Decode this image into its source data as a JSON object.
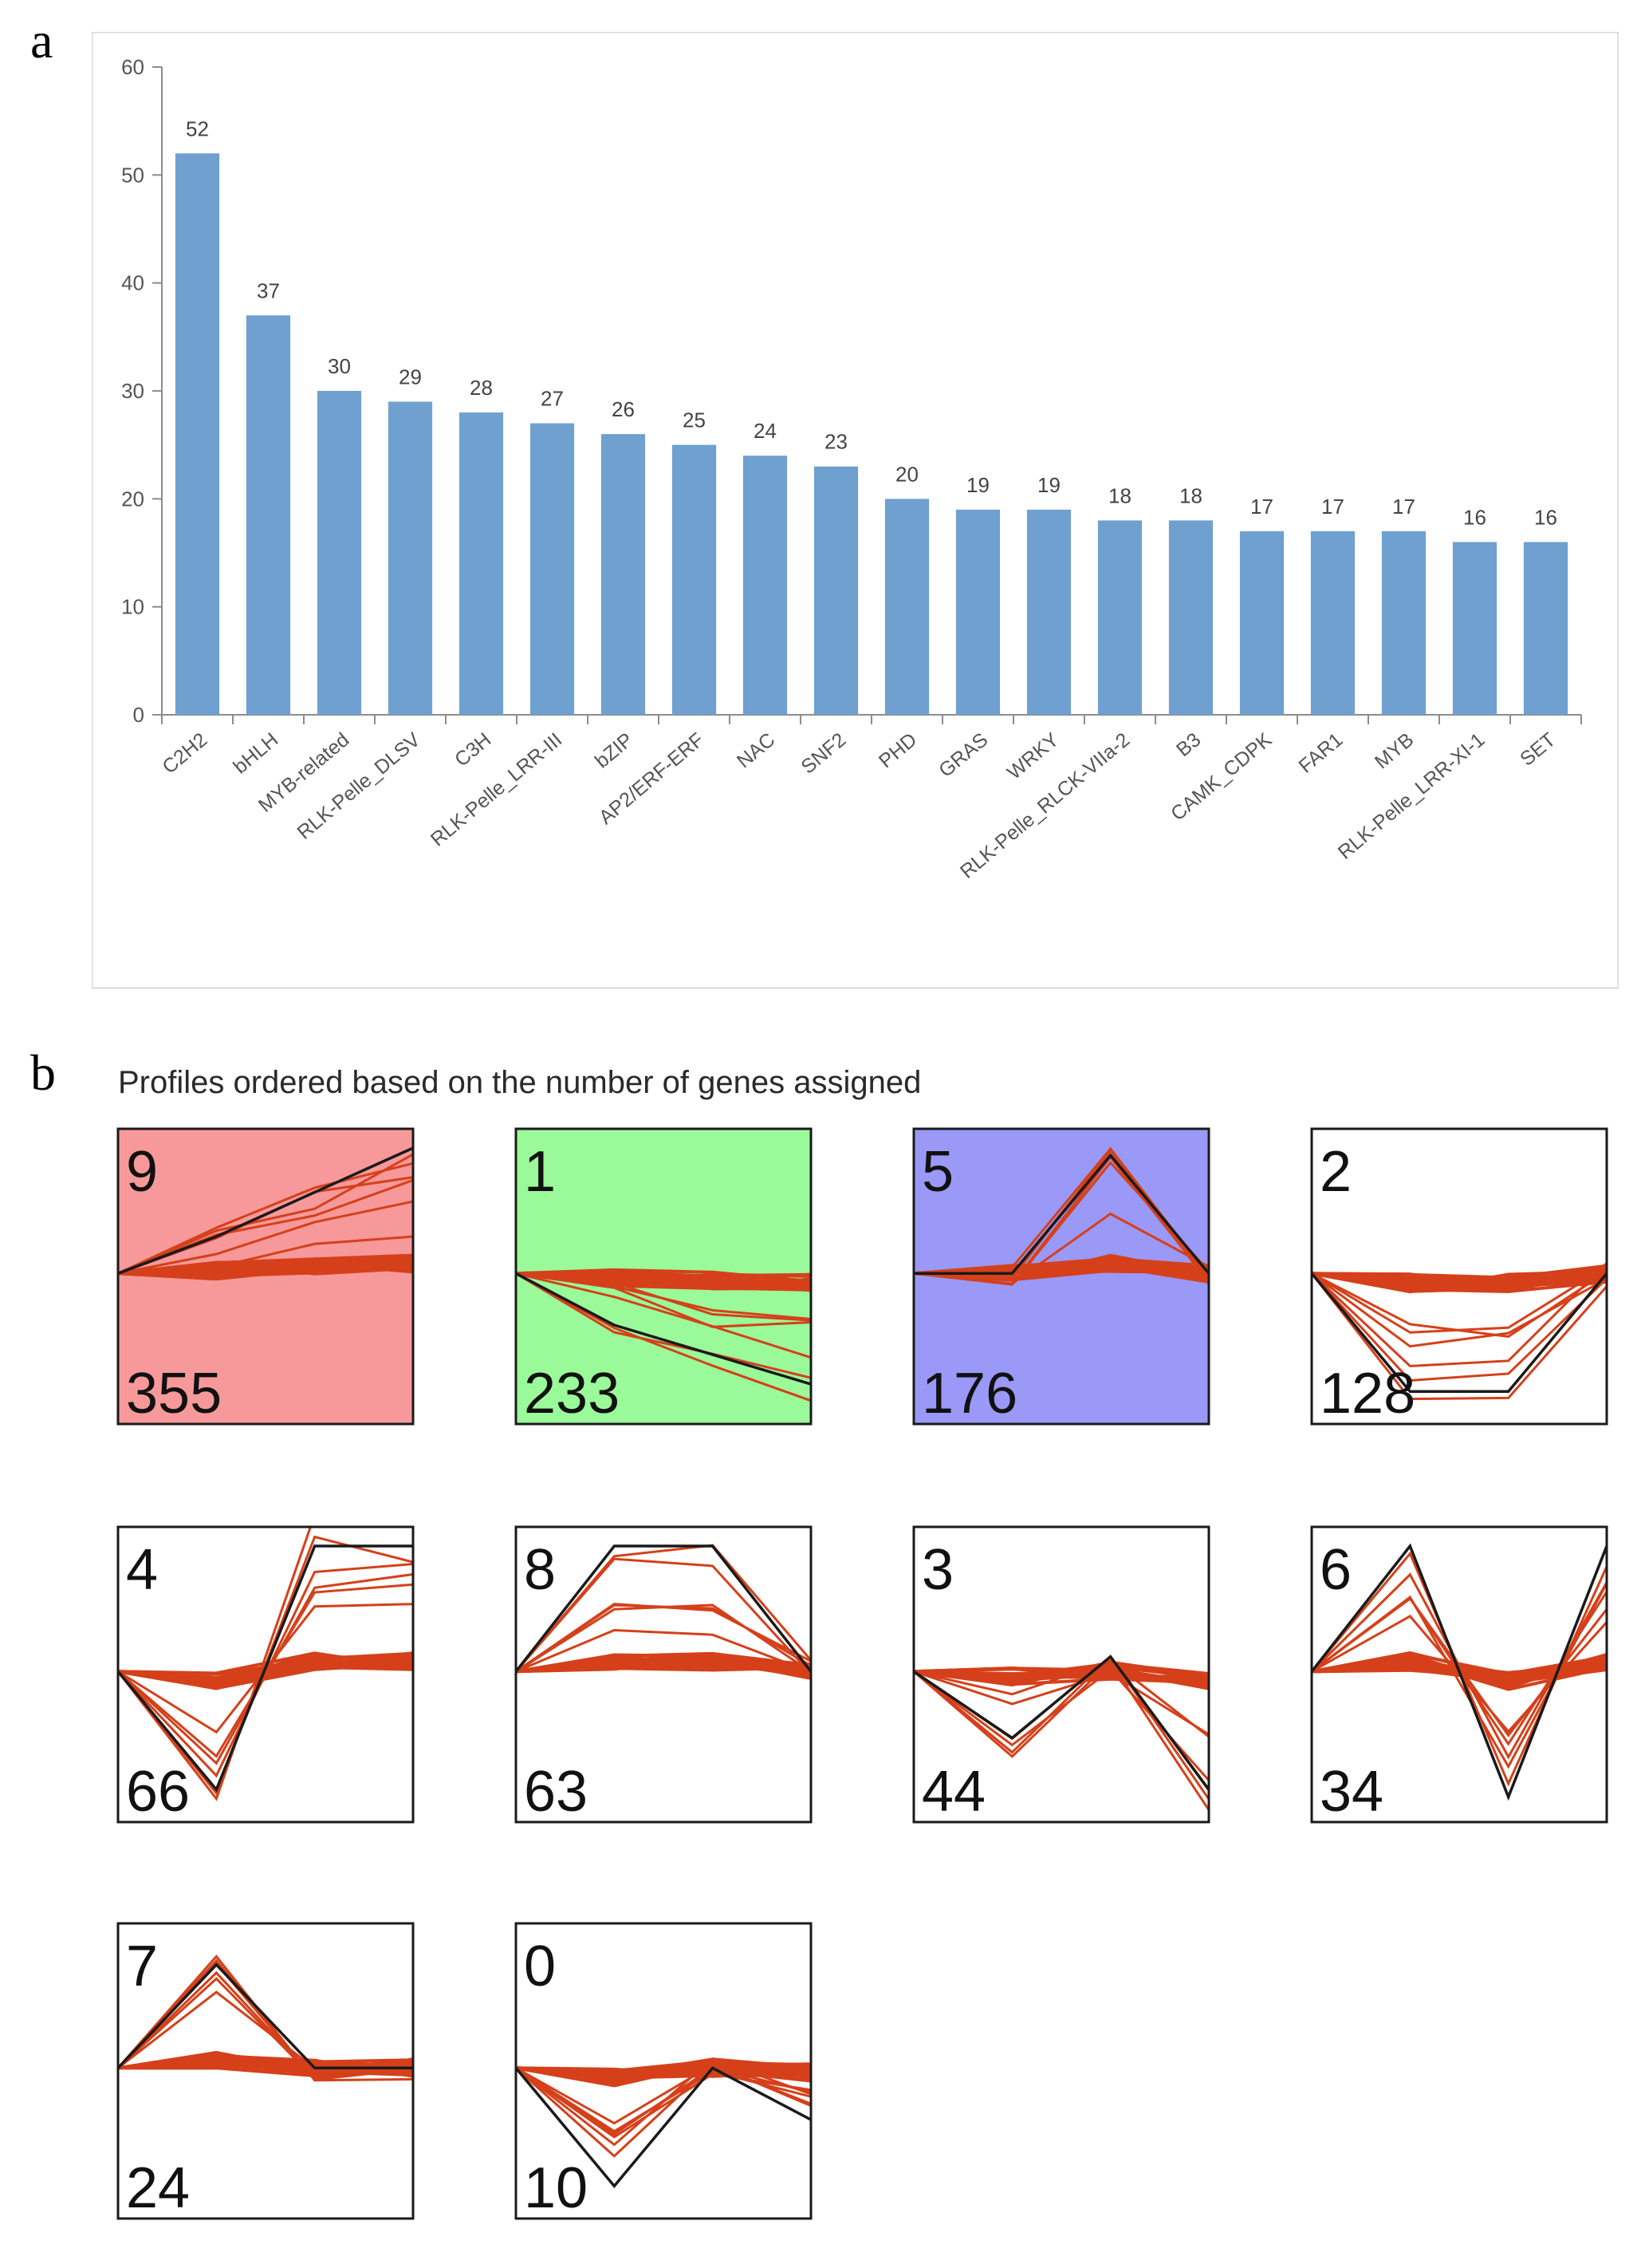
{
  "panel_labels": {
    "a": "a",
    "b": "b"
  },
  "chart_data": [
    {
      "type": "bar",
      "panel": "a",
      "title": "",
      "xlabel": "",
      "ylabel": "",
      "ylim": [
        0,
        60
      ],
      "yticks": [
        0,
        10,
        20,
        30,
        40,
        50,
        60
      ],
      "grid": false,
      "bar_color": "#6fa0cf",
      "categories": [
        "C2H2",
        "bHLH",
        "MYB-related",
        "RLK-Pelle_DLSV",
        "C3H",
        "RLK-Pelle_LRR-III",
        "bZIP",
        "AP2/ERF-ERF",
        "NAC",
        "SNF2",
        "PHD",
        "GRAS",
        "WRKY",
        "RLK-Pelle_RLCK-VIIa-2",
        "B3",
        "CAMK_CDPK",
        "FAR1",
        "MYB",
        "RLK-Pelle_LRR-XI-1",
        "SET"
      ],
      "values": [
        52,
        37,
        30,
        29,
        28,
        27,
        26,
        25,
        24,
        23,
        20,
        19,
        19,
        18,
        18,
        17,
        17,
        17,
        16,
        16
      ]
    },
    {
      "type": "line",
      "panel": "b",
      "title": "Profiles ordered based on the number of genes assigned",
      "line_color": "#d5401a",
      "model_line_color": "#1a1a1a",
      "x": [
        0,
        1,
        2,
        3
      ],
      "profiles": [
        {
          "id": "9",
          "count": "355",
          "bg": "#f7999a",
          "model": [
            0,
            0.25,
            0.55,
            0.85
          ]
        },
        {
          "id": "1",
          "count": "233",
          "bg": "#9afa99",
          "model": [
            0,
            -0.35,
            -0.55,
            -0.75
          ]
        },
        {
          "id": "5",
          "count": "176",
          "bg": "#9a99f7",
          "model": [
            0,
            0,
            0.8,
            0
          ]
        },
        {
          "id": "2",
          "count": "128",
          "bg": "#ffffff",
          "model": [
            0,
            -0.8,
            -0.8,
            0
          ]
        },
        {
          "id": "4",
          "count": "66",
          "bg": "#ffffff",
          "model": [
            0,
            -0.8,
            0.85,
            0.85
          ]
        },
        {
          "id": "8",
          "count": "63",
          "bg": "#ffffff",
          "model": [
            0,
            0.85,
            0.85,
            0
          ]
        },
        {
          "id": "3",
          "count": "44",
          "bg": "#ffffff",
          "model": [
            0,
            -0.45,
            0.1,
            -0.8
          ]
        },
        {
          "id": "6",
          "count": "34",
          "bg": "#ffffff",
          "model": [
            0,
            0.85,
            -0.85,
            0.85
          ]
        },
        {
          "id": "7",
          "count": "24",
          "bg": "#ffffff",
          "model": [
            0,
            0.7,
            0,
            0
          ]
        },
        {
          "id": "0",
          "count": "10",
          "bg": "#ffffff",
          "model": [
            0,
            -0.8,
            0,
            -0.35
          ]
        }
      ]
    }
  ]
}
